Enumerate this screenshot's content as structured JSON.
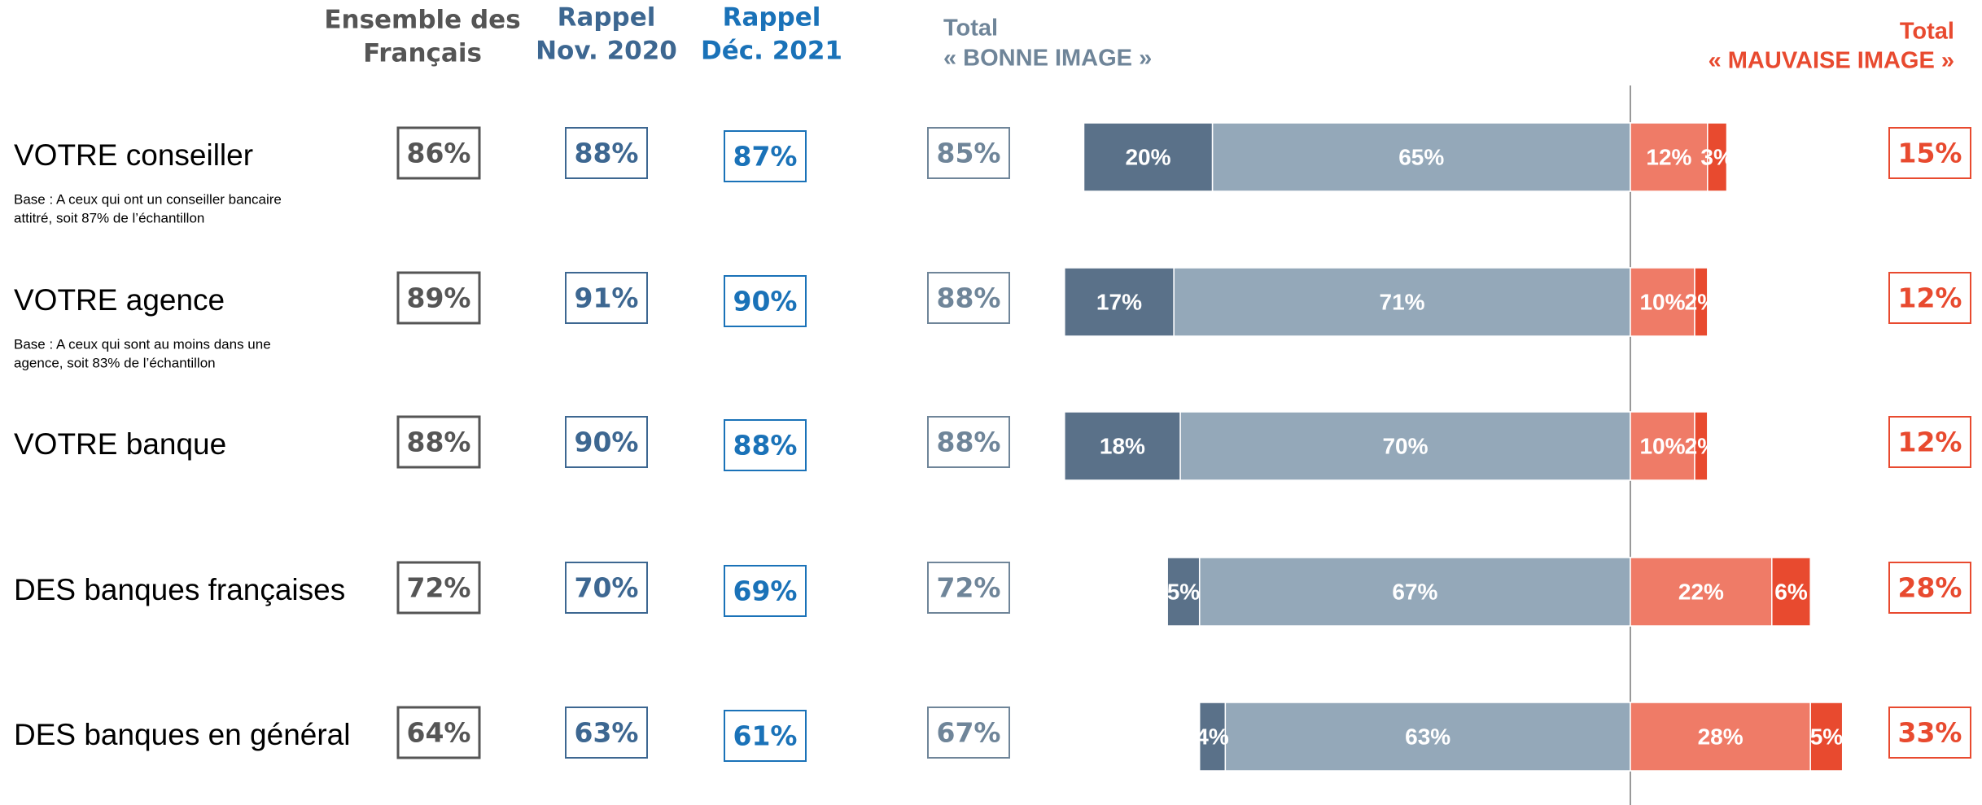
{
  "chart_data": {
    "type": "diverging-bar",
    "categories": [
      "VOTRE conseiller",
      "VOTRE agence",
      "VOTRE banque",
      "DES banques françaises",
      "DES banques en général"
    ],
    "notes": [
      [
        "Base : A ceux qui ont un conseiller bancaire",
        "attitré, soit 87% de l’échantillon"
      ],
      [
        "Base : A ceux qui sont au moins dans une",
        "agence, soit 83% de l’échantillon"
      ],
      null,
      null,
      null
    ],
    "columns": [
      {
        "header": [
          "Ensemble des",
          "Français"
        ],
        "color": "#555555",
        "values": [
          86,
          89,
          88,
          72,
          64
        ],
        "value_labels": [
          "86%",
          "89%",
          "88%",
          "72%",
          "64%"
        ]
      },
      {
        "header": [
          "Rappel",
          "Nov. 2020"
        ],
        "color": "#3d6791",
        "values": [
          88,
          91,
          90,
          70,
          63
        ],
        "value_labels": [
          "88%",
          "91%",
          "90%",
          "70%",
          "63%"
        ]
      },
      {
        "header": [
          "Rappel",
          "Déc. 2021"
        ],
        "color": "#1a72b8",
        "values": [
          87,
          90,
          88,
          69,
          61
        ],
        "value_labels": [
          "87%",
          "90%",
          "88%",
          "69%",
          "61%"
        ]
      },
      {
        "header": [
          "Total",
          "« BONNE IMAGE »"
        ],
        "color": "#6f8599",
        "values": [
          85,
          88,
          88,
          72,
          67
        ],
        "value_labels": [
          "85%",
          "88%",
          "88%",
          "72%",
          "67%"
        ]
      }
    ],
    "good_series": [
      {
        "color": "#94a8b9",
        "values": [
          65,
          71,
          70,
          67,
          63
        ],
        "value_labels": [
          "65%",
          "71%",
          "70%",
          "67%",
          "63%"
        ]
      },
      {
        "color": "#5a7189",
        "values": [
          20,
          17,
          18,
          5,
          4
        ],
        "value_labels": [
          "20%",
          "17%",
          "18%",
          "5%",
          "4%"
        ]
      }
    ],
    "bad_series": [
      {
        "color": "#ef7b67",
        "values": [
          12,
          10,
          10,
          22,
          28
        ],
        "value_labels": [
          "12%",
          "10%",
          "10%",
          "22%",
          "28%"
        ]
      },
      {
        "color": "#e84a2f",
        "values": [
          3,
          2,
          2,
          6,
          5
        ],
        "value_labels": [
          "3%",
          "2%",
          "2%",
          "6%",
          "5%"
        ]
      }
    ],
    "bad_total": {
      "header": [
        "Total",
        "« MAUVAISE IMAGE »"
      ],
      "color": "#e84a2f",
      "values": [
        15,
        12,
        12,
        28,
        33
      ],
      "value_labels": [
        "15%",
        "12%",
        "12%",
        "28%",
        "33%"
      ]
    }
  }
}
